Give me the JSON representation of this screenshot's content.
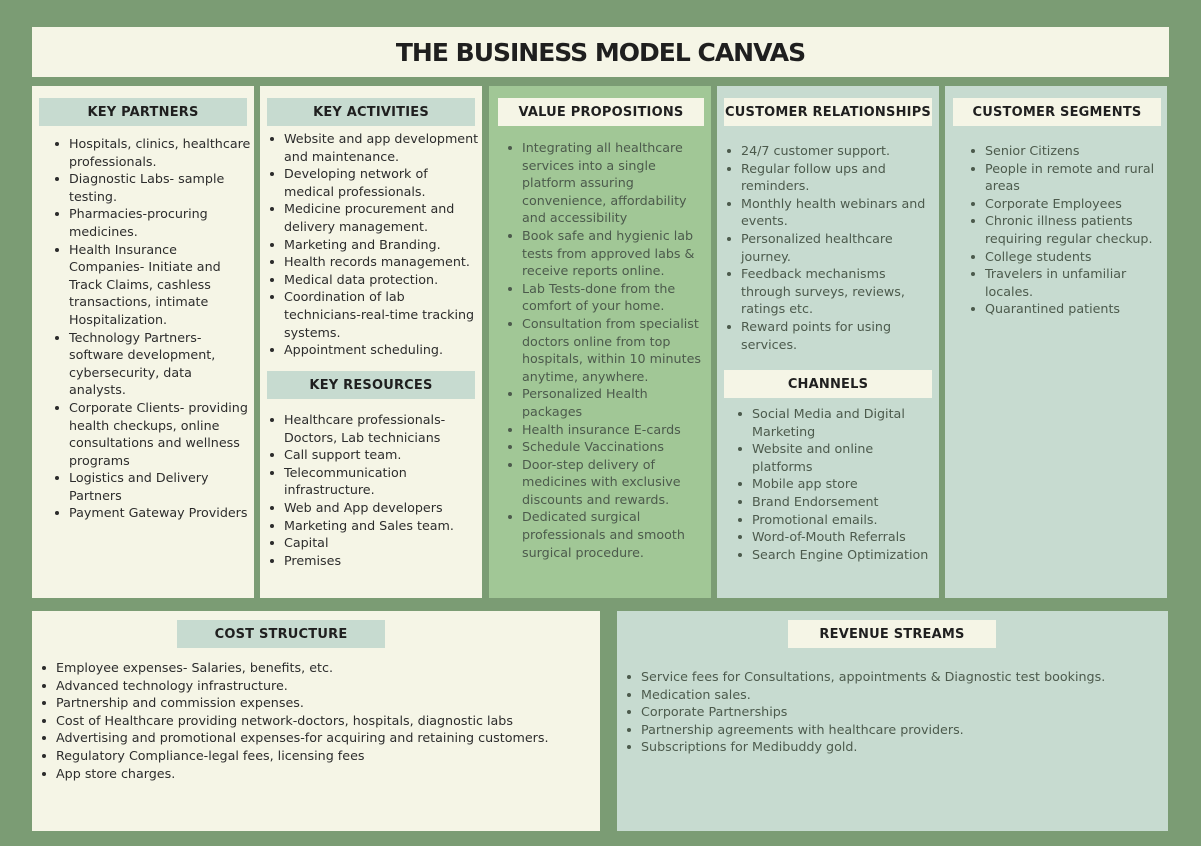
{
  "title": "THE BUSINESS MODEL CANVAS",
  "colors": {
    "background": "#7b9c74",
    "cream": "#f5f5e6",
    "green": "#a1c796",
    "blue": "#c7dbd0"
  },
  "key_partners": {
    "heading": "KEY PARTNERS",
    "items": [
      "Hospitals, clinics, healthcare professionals.",
      "Diagnostic Labs- sample testing.",
      "Pharmacies-procuring medicines.",
      "Health Insurance Companies- Initiate and Track Claims, cashless transactions, intimate Hospitalization.",
      "Technology Partners- software development, cybersecurity, data analysts.",
      "Corporate Clients- providing health checkups, online consultations and wellness programs",
      "Logistics and Delivery Partners",
      "Payment Gateway Providers"
    ]
  },
  "key_activities": {
    "heading": "KEY ACTIVITIES",
    "items": [
      "Website and app development and maintenance.",
      "Developing network of medical professionals.",
      "Medicine procurement and delivery management.",
      "Marketing and Branding.",
      "Health records management.",
      "Medical data protection.",
      "Coordination of lab technicians-real-time tracking systems.",
      "Appointment scheduling."
    ]
  },
  "key_resources": {
    "heading": "KEY RESOURCES",
    "items": [
      "Healthcare professionals- Doctors, Lab technicians",
      "Call support team.",
      "Telecommunication infrastructure.",
      "Web and App developers",
      "Marketing and Sales team.",
      "Capital",
      "Premises"
    ]
  },
  "value_propositions": {
    "heading": "VALUE PROPOSITIONS",
    "items": [
      "Integrating all healthcare services into a single platform assuring convenience, affordability and accessibility",
      "Book safe and hygienic lab tests from approved labs & receive reports online.",
      "Lab Tests-done from the comfort of your home.",
      "Consultation from specialist doctors online from top hospitals, within 10 minutes anytime, anywhere.",
      "Personalized Health packages",
      "Health insurance E-cards",
      "Schedule Vaccinations",
      "Door-step delivery of medicines with exclusive discounts and rewards.",
      "Dedicated surgical professionals and smooth surgical procedure."
    ]
  },
  "customer_relationships": {
    "heading": "CUSTOMER RELATIONSHIPS",
    "items": [
      "24/7 customer support.",
      "Regular follow ups and reminders.",
      "Monthly health webinars and events.",
      "Personalized healthcare journey.",
      "Feedback mechanisms through surveys, reviews, ratings etc.",
      "Reward points for using services."
    ]
  },
  "channels": {
    "heading": "CHANNELS",
    "items": [
      "Social Media and Digital Marketing",
      "Website and online platforms",
      "Mobile app store",
      "Brand Endorsement",
      "Promotional emails.",
      "Word-of-Mouth Referrals",
      "Search Engine Optimization"
    ]
  },
  "customer_segments": {
    "heading": "CUSTOMER SEGMENTS",
    "items": [
      "Senior Citizens",
      "People in remote and rural areas",
      "Corporate Employees",
      "Chronic illness patients requiring regular checkup.",
      "College students",
      "Travelers in unfamiliar locales.",
      "Quarantined patients"
    ]
  },
  "cost_structure": {
    "heading": "COST STRUCTURE",
    "items": [
      "Employee expenses- Salaries, benefits, etc.",
      "Advanced technology infrastructure.",
      "Partnership and commission expenses.",
      "Cost of Healthcare providing network-doctors, hospitals, diagnostic labs",
      "Advertising and promotional expenses-for acquiring and retaining customers.",
      "Regulatory Compliance-legal fees, licensing fees",
      "App store charges."
    ]
  },
  "revenue_streams": {
    "heading": "REVENUE STREAMS",
    "items": [
      "Service fees for Consultations, appointments & Diagnostic test bookings.",
      "Medication sales.",
      "Corporate Partnerships",
      "Partnership agreements with healthcare providers.",
      "Subscriptions for Medibuddy gold."
    ]
  }
}
